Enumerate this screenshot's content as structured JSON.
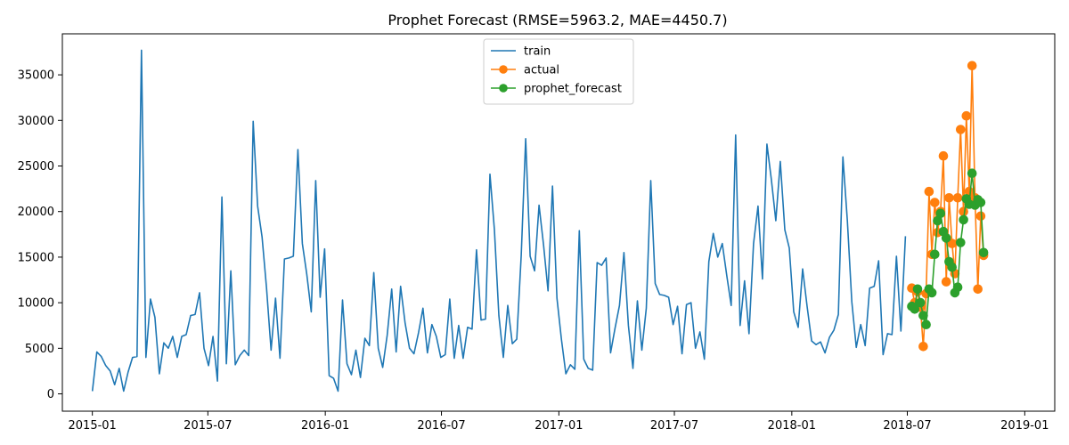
{
  "chart_data": {
    "type": "line",
    "title": "Prophet Forecast (RMSE=5963.2, MAE=4450.7)",
    "xlabel": "",
    "ylabel": "",
    "x_axis": {
      "type": "date",
      "range": [
        "2014-11-15",
        "2019-02-17"
      ],
      "ticks": [
        "2015-01-01",
        "2015-07-01",
        "2016-01-01",
        "2016-07-01",
        "2017-01-01",
        "2017-07-01",
        "2018-01-01",
        "2018-07-01",
        "2019-01-01"
      ],
      "tick_labels": [
        "2015-01",
        "2015-07",
        "2016-01",
        "2016-07",
        "2017-01",
        "2017-07",
        "2018-01",
        "2018-07",
        "2019-01"
      ]
    },
    "y_axis": {
      "range": [
        -1900,
        39500
      ],
      "ticks": [
        0,
        5000,
        10000,
        15000,
        20000,
        25000,
        30000,
        35000
      ],
      "tick_labels": [
        "0",
        "5000",
        "10000",
        "15000",
        "20000",
        "25000",
        "30000",
        "35000"
      ]
    },
    "grid": false,
    "legend": {
      "placement": "top-center",
      "entries": [
        "train",
        "actual",
        "prophet_forecast"
      ]
    },
    "series": [
      {
        "name": "train",
        "color": "#1f77b4",
        "marker": "none",
        "start_date": "2015-01-01",
        "step_days": 7,
        "values": [
          300,
          4600,
          4100,
          3100,
          2500,
          1000,
          2800,
          300,
          2400,
          4000,
          4100,
          37700,
          4000,
          10400,
          8400,
          2200,
          5600,
          5000,
          6300,
          4000,
          6300,
          6500,
          8600,
          8700,
          11100,
          5000,
          3100,
          6300,
          1400,
          21600,
          3300,
          13500,
          3200,
          4200,
          4800,
          4200,
          29900,
          20600,
          17200,
          11600,
          4800,
          10500,
          3900,
          14800,
          14900,
          15100,
          26800,
          16500,
          13100,
          9000,
          23400,
          10600,
          15900,
          2000,
          1700,
          300,
          10300,
          3300,
          2100,
          4800,
          1800,
          6100,
          5300,
          13300,
          5000,
          2900,
          6400,
          11500,
          4600,
          11800,
          7800,
          5000,
          4400,
          6700,
          9400,
          4500,
          7600,
          6300,
          4000,
          4300,
          10400,
          3900,
          7500,
          3900,
          7300,
          7100,
          15800,
          8100,
          8200,
          24100,
          18000,
          8600,
          4000,
          9700,
          5500,
          6000,
          15200,
          28000,
          15100,
          13500,
          20700,
          16300,
          11300,
          22800,
          10500,
          6000,
          2200,
          3200,
          2700,
          17900,
          3800,
          2800,
          2600,
          14400,
          14100,
          14900,
          4500,
          7200,
          9700,
          15500,
          7500,
          2800,
          10200,
          4800,
          9400,
          23400,
          12100,
          10900,
          10800,
          10600,
          7600,
          9600,
          4400,
          9800,
          10000,
          5000,
          6800,
          3800,
          14500,
          17600,
          15000,
          16500,
          13000,
          9700,
          28400,
          7500,
          12400,
          6600,
          16500,
          20600,
          12600,
          27400,
          23500,
          19000,
          25500,
          18000,
          16000,
          9000,
          7300,
          13700,
          9600,
          5800,
          5400,
          5700,
          4500,
          6200,
          7000,
          8700,
          26000,
          19000,
          10100,
          5100,
          7600,
          5300,
          11600,
          11800,
          14600,
          4300,
          6600,
          6500,
          15100,
          6900,
          17300
        ]
      },
      {
        "name": "actual",
        "color": "#ff7f0e",
        "marker": "circle",
        "start_date": "2018-07-08",
        "step_days": 4.5,
        "values": [
          11600,
          10000,
          11200,
          9500,
          5200,
          11000,
          22200,
          15300,
          21000,
          17700,
          20000,
          26100,
          12300,
          21500,
          16500,
          13200,
          21500,
          29000,
          20000,
          30500,
          22200,
          36000,
          21500,
          11500,
          19500,
          15200
        ]
      },
      {
        "name": "prophet_forecast",
        "color": "#2ca02c",
        "marker": "circle",
        "start_date": "2018-07-08",
        "step_days": 4.5,
        "values": [
          9600,
          9300,
          11500,
          10000,
          8600,
          7600,
          11500,
          11100,
          15300,
          19000,
          19800,
          17800,
          17100,
          14500,
          13900,
          11100,
          11700,
          16600,
          19100,
          21400,
          20800,
          24200,
          20700,
          21300,
          21000,
          15500
        ]
      }
    ]
  }
}
